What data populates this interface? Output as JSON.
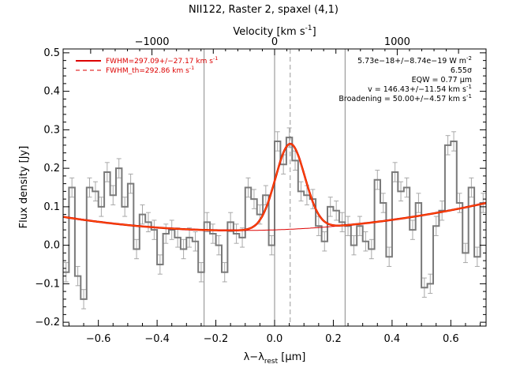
{
  "chart_data": {
    "type": "line",
    "title": "NII122, Raster 2, spaxel (4,1)",
    "xlabel_main": "λ−λ",
    "xlabel_sub": "rest",
    "xlabel_unit": " [μm]",
    "xlabel_top": "Velocity [km s",
    "xlabel_top_sup": "-1",
    "xlabel_top_close": "]",
    "ylabel": "Flux density [Jy]",
    "xlim": [
      -0.72,
      0.72
    ],
    "ylim": [
      -0.21,
      0.51
    ],
    "x_ticks": [
      -0.6,
      -0.4,
      -0.2,
      0.0,
      0.2,
      0.4,
      0.6
    ],
    "x_tick_labels": [
      "−0.6",
      "−0.4",
      "−0.2",
      "0.0",
      "0.2",
      "0.4",
      "0.6"
    ],
    "y_ticks": [
      -0.2,
      -0.1,
      0.0,
      0.1,
      0.2,
      0.3,
      0.4,
      0.5
    ],
    "y_tick_labels": [
      "−0.2",
      "−0.1",
      "0.0",
      "0.1",
      "0.2",
      "0.3",
      "0.4",
      "0.5"
    ],
    "top_ticks": [
      -1000,
      0,
      1000
    ],
    "top_tick_labels": [
      "−1000",
      "0",
      "1000"
    ],
    "km_per_um": 2395,
    "vlines_solid": [
      -0.24,
      0.0,
      0.24
    ],
    "vline_dashed": 0.053,
    "continuum": {
      "c0": 0.04,
      "c1": 0.025,
      "c2": 0.1
    },
    "gaussian": {
      "center": 0.053,
      "amplitude": 0.222,
      "sigma": 0.05
    },
    "legend": [
      {
        "label": "FWHM=297.09+/−27.17 km s",
        "sup": "-1",
        "style": "solid"
      },
      {
        "label": "FWHM_th=292.86 km s",
        "sup": "-1",
        "style": "dashed"
      }
    ],
    "annotations": [
      {
        "text": "5.73e−18+/−8.74e−19 W m",
        "sup": "-2"
      },
      {
        "text": "6.55σ",
        "sup": ""
      },
      {
        "text": "EQW = 0.77 μm",
        "sup": ""
      },
      {
        "text": "v = 146.43+/−11.54 km s",
        "sup": "-1"
      },
      {
        "text": "Broadening = 50.00+/−4.57 km s",
        "sup": "-1"
      }
    ],
    "spectrum": {
      "x": [
        -0.72,
        -0.7,
        -0.68,
        -0.66,
        -0.64,
        -0.62,
        -0.6,
        -0.58,
        -0.56,
        -0.54,
        -0.52,
        -0.5,
        -0.48,
        -0.46,
        -0.44,
        -0.42,
        -0.4,
        -0.38,
        -0.36,
        -0.34,
        -0.32,
        -0.3,
        -0.28,
        -0.26,
        -0.24,
        -0.22,
        -0.2,
        -0.18,
        -0.16,
        -0.14,
        -0.12,
        -0.1,
        -0.08,
        -0.06,
        -0.04,
        -0.02,
        0.0,
        0.02,
        0.04,
        0.06,
        0.08,
        0.1,
        0.12,
        0.14,
        0.16,
        0.18,
        0.2,
        0.22,
        0.24,
        0.26,
        0.28,
        0.3,
        0.32,
        0.34,
        0.36,
        0.38,
        0.4,
        0.42,
        0.44,
        0.46,
        0.48,
        0.5,
        0.52,
        0.54,
        0.56,
        0.58,
        0.6,
        0.62,
        0.64,
        0.66,
        0.68,
        0.7
      ],
      "y": [
        -0.07,
        0.15,
        -0.08,
        -0.14,
        0.15,
        0.14,
        0.1,
        0.19,
        0.13,
        0.2,
        0.1,
        0.16,
        -0.01,
        0.08,
        0.06,
        0.04,
        -0.05,
        0.03,
        0.04,
        0.02,
        -0.01,
        0.02,
        0.01,
        -0.07,
        0.06,
        0.03,
        0.0,
        -0.07,
        0.06,
        0.03,
        0.02,
        0.15,
        0.12,
        0.08,
        0.13,
        0.0,
        0.27,
        0.21,
        0.28,
        0.22,
        0.14,
        0.13,
        0.12,
        0.05,
        0.01,
        0.1,
        0.09,
        0.06,
        0.05,
        0.0,
        0.05,
        0.01,
        -0.01,
        0.17,
        0.11,
        -0.03,
        0.19,
        0.14,
        0.15,
        0.04,
        0.11,
        -0.11,
        -0.1,
        0.05,
        0.09,
        0.26,
        0.27,
        0.11,
        -0.02,
        0.15,
        -0.03,
        0.11
      ],
      "err": 0.025
    }
  }
}
